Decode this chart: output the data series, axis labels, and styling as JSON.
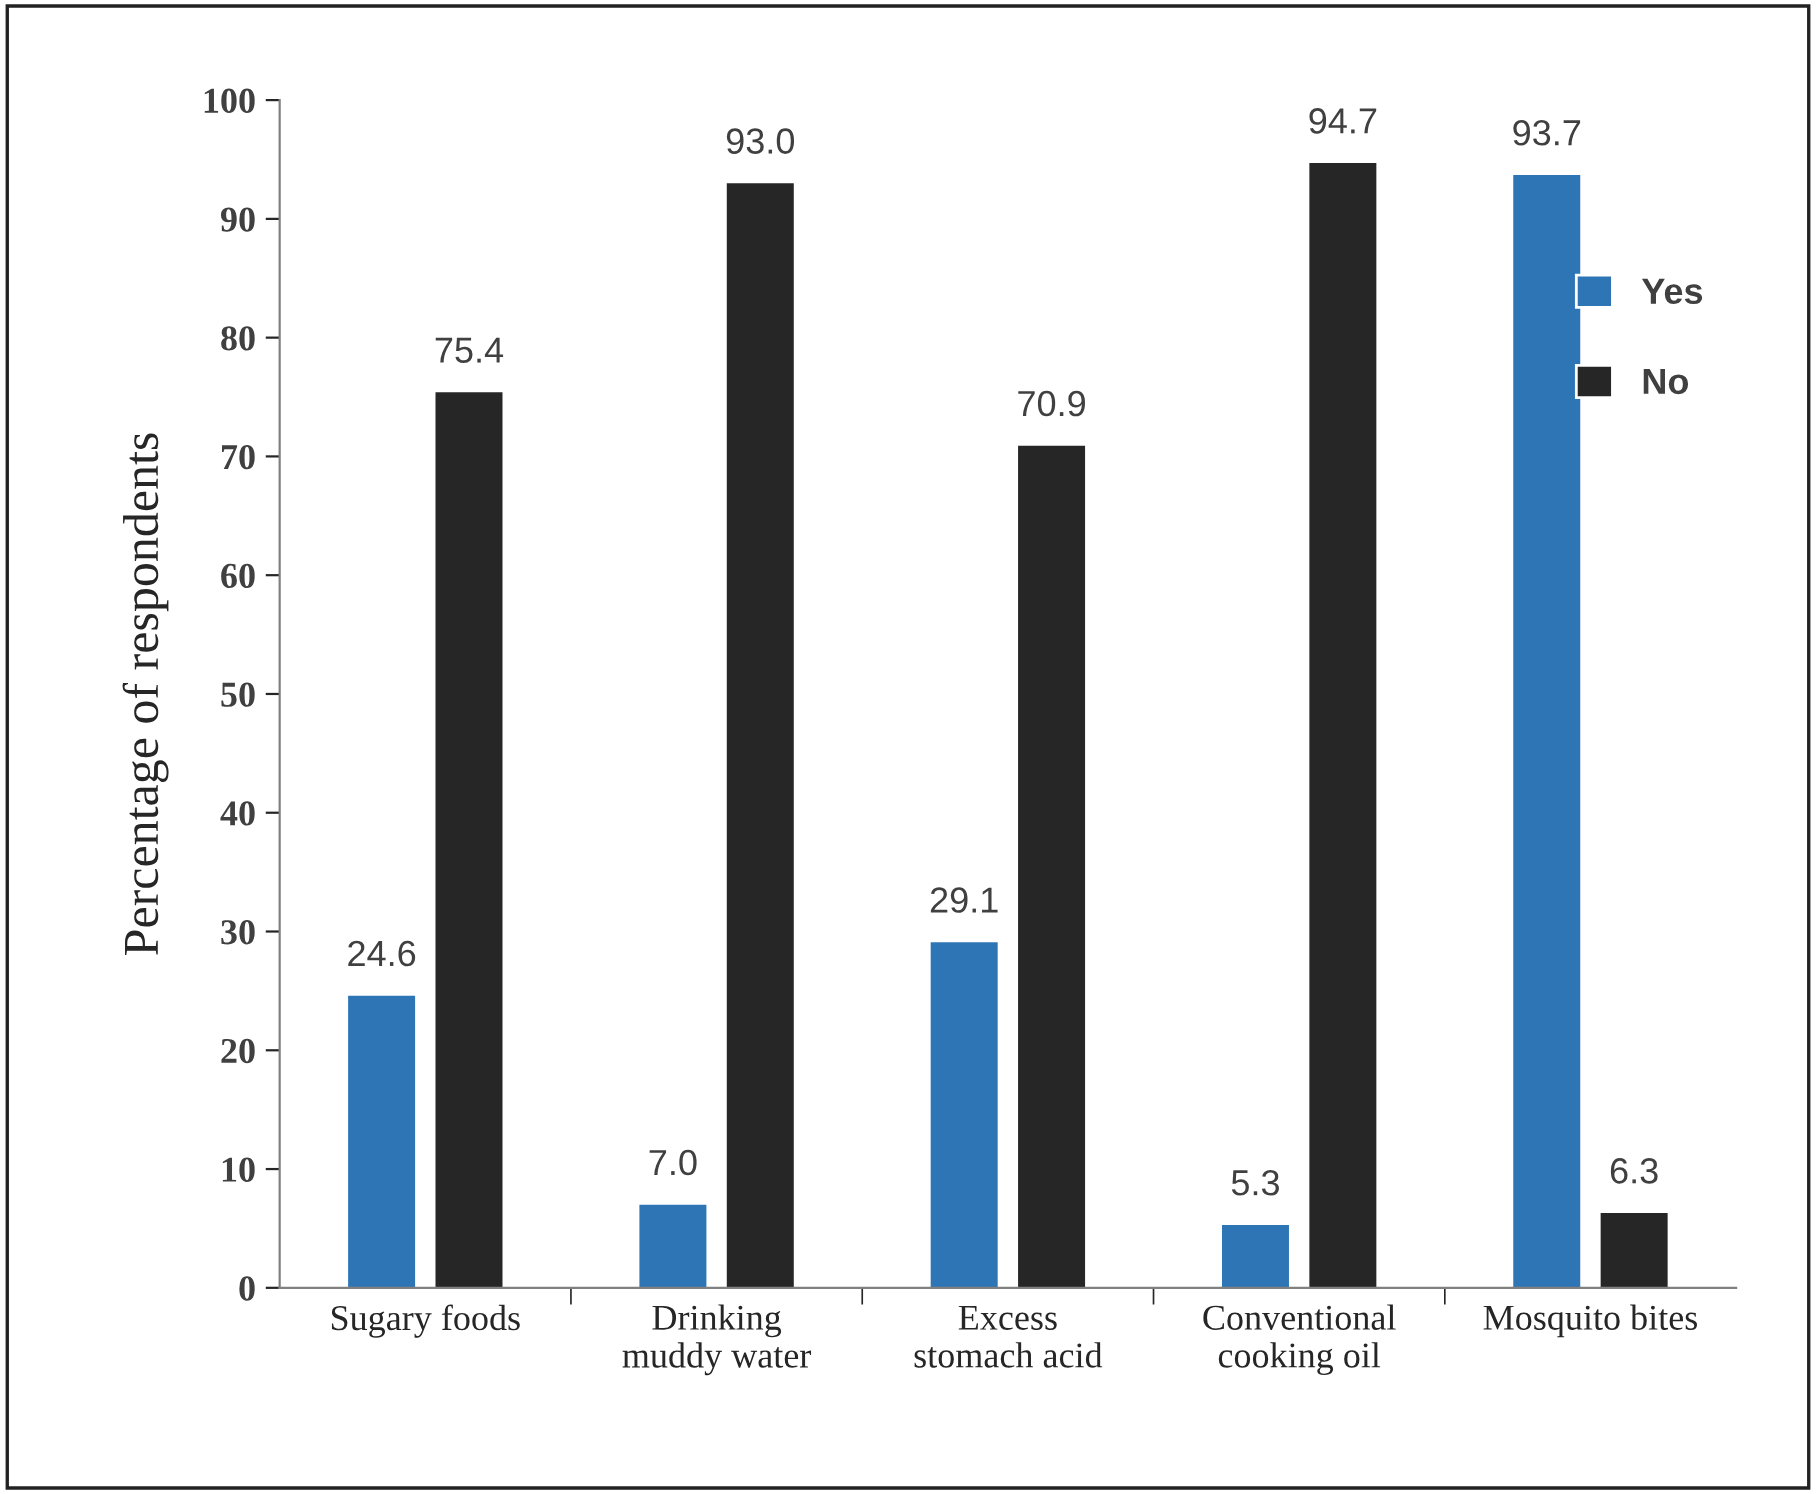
{
  "chart_data": {
    "type": "bar",
    "ylabel": "Percentage of respondents",
    "categories": [
      "Sugary foods",
      "Drinking\nmuddy water",
      "Excess\nstomach acid",
      "Conventional\ncooking oil",
      "Mosquito bites"
    ],
    "series": [
      {
        "name": "Yes",
        "color": "#2e75b6",
        "values": [
          24.6,
          7.0,
          29.1,
          5.3,
          93.7
        ],
        "value_labels": [
          "24.6",
          "7.0",
          "29.1",
          "5.3",
          "93.7"
        ]
      },
      {
        "name": "No",
        "color": "#262626",
        "values": [
          75.4,
          93.0,
          70.9,
          94.7,
          6.3
        ],
        "value_labels": [
          "75.4",
          "93.0",
          "70.9",
          "94.7",
          "6.3"
        ]
      }
    ],
    "ylim": [
      0,
      100
    ],
    "yticks": [
      0,
      10,
      20,
      30,
      40,
      50,
      60,
      70,
      80,
      90,
      100
    ],
    "grid": false,
    "legend": "top right"
  }
}
